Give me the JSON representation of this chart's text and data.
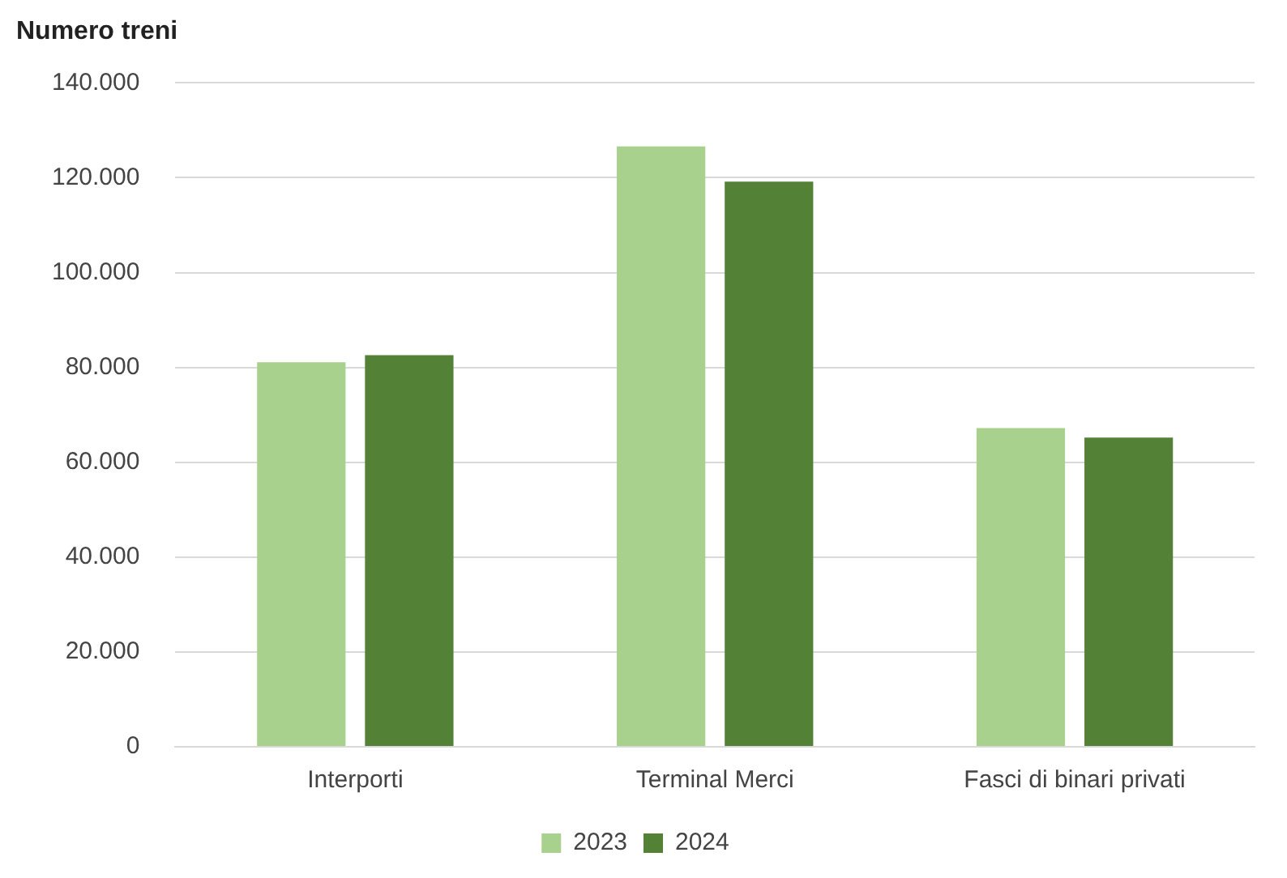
{
  "chart_data": {
    "type": "bar",
    "title": "Numero treni",
    "categories": [
      "Interporti",
      "Terminal Merci",
      "Fasci di binari privati"
    ],
    "series": [
      {
        "name": "2023",
        "color": "#a9d18e",
        "values": [
          81100,
          126600,
          67200
        ]
      },
      {
        "name": "2024",
        "color": "#538135",
        "values": [
          82600,
          119200,
          65200
        ]
      }
    ],
    "ylim": [
      0,
      140000
    ],
    "yticks": [
      {
        "value": 0,
        "label": "0"
      },
      {
        "value": 20000,
        "label": "20.000"
      },
      {
        "value": 40000,
        "label": "40.000"
      },
      {
        "value": 60000,
        "label": "60.000"
      },
      {
        "value": 80000,
        "label": "80.000"
      },
      {
        "value": 100000,
        "label": "100.000"
      },
      {
        "value": 120000,
        "label": "120.000"
      },
      {
        "value": 140000,
        "label": "140.000"
      }
    ],
    "grid": "y",
    "legend": "bottom"
  }
}
